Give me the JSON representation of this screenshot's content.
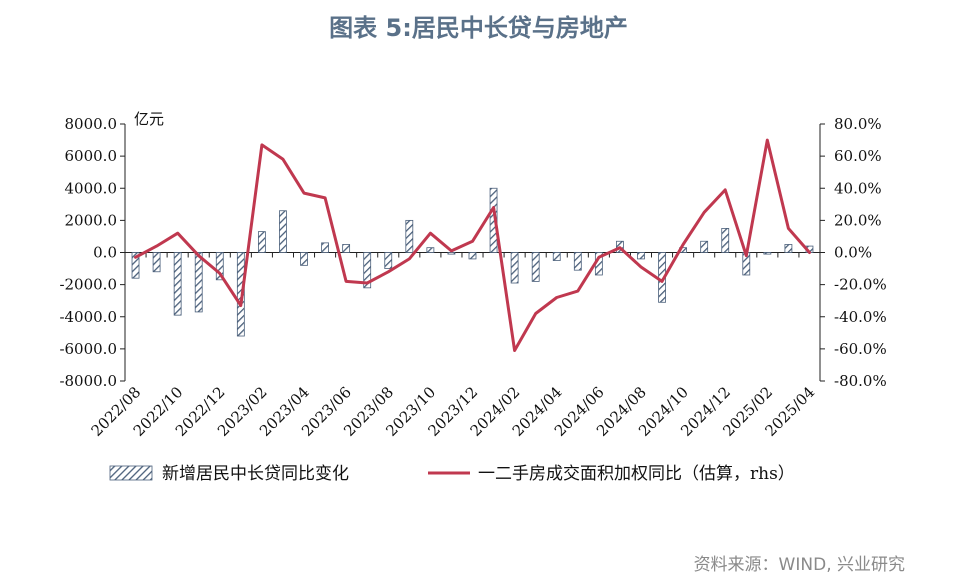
{
  "header": {
    "title": "图表 5:居民中长贷与房地产"
  },
  "footer": {
    "source": "资料来源：WIND, 兴业研究"
  },
  "chart_data": {
    "type": "bar",
    "x": [
      "2022/08",
      "2022/09",
      "2022/10",
      "2022/11",
      "2022/12",
      "2023/01",
      "2023/02",
      "2023/03",
      "2023/04",
      "2023/05",
      "2023/06",
      "2023/07",
      "2023/08",
      "2023/09",
      "2023/10",
      "2023/11",
      "2023/12",
      "2024/01",
      "2024/02",
      "2024/03",
      "2024/04",
      "2024/05",
      "2024/06",
      "2024/07",
      "2024/08",
      "2024/09",
      "2024/10",
      "2024/11",
      "2024/12",
      "2025/01",
      "2025/02",
      "2025/03",
      "2025/04"
    ],
    "x_tick_labels": [
      "2022/08",
      "2022/10",
      "2022/12",
      "2023/02",
      "2023/04",
      "2023/06",
      "2023/08",
      "2023/10",
      "2023/12",
      "2024/02",
      "2024/04",
      "2024/06",
      "2024/08",
      "2024/10",
      "2024/12",
      "2025/02",
      "2025/04"
    ],
    "y_left": {
      "unit": "亿元",
      "lim": [
        -8000,
        8000
      ],
      "ticks": [
        "8000.0",
        "6000.0",
        "4000.0",
        "2000.0",
        "0.0",
        "-2000.0",
        "-4000.0",
        "-6000.0",
        "-8000.0"
      ]
    },
    "y_right": {
      "lim": [
        -80,
        80
      ],
      "ticks": [
        "80.0%",
        "60.0%",
        "40.0%",
        "20.0%",
        "0.0%",
        "-20.0%",
        "-40.0%",
        "-60.0%",
        "-80.0%"
      ]
    },
    "series": [
      {
        "name": "新增居民中长贷同比变化",
        "kind": "bar",
        "axis": "left",
        "color": "#4a5f7a",
        "values": [
          -1600,
          -1200,
          -3900,
          -3700,
          -1700,
          -5200,
          1300,
          2600,
          -800,
          600,
          500,
          -2200,
          -1000,
          2000,
          300,
          -100,
          -400,
          4000,
          -1900,
          -1800,
          -500,
          -1100,
          -1400,
          700,
          -400,
          -3100,
          300,
          700,
          1500,
          -1400,
          -100,
          500,
          400
        ]
      },
      {
        "name": "一二手房成交面积加权同比（估算，rhs）",
        "kind": "line",
        "axis": "right",
        "color": "#c0384f",
        "values": [
          -3,
          4,
          12,
          -2,
          -13,
          -33,
          67,
          58,
          37,
          34,
          -18,
          -19,
          -12,
          -4,
          12,
          1,
          7,
          28,
          -61,
          -38,
          -28,
          -24,
          -3,
          3,
          -9,
          -18,
          5,
          25,
          39,
          -2,
          70,
          15,
          0
        ]
      }
    ],
    "grid": false,
    "legend": "bottom"
  }
}
